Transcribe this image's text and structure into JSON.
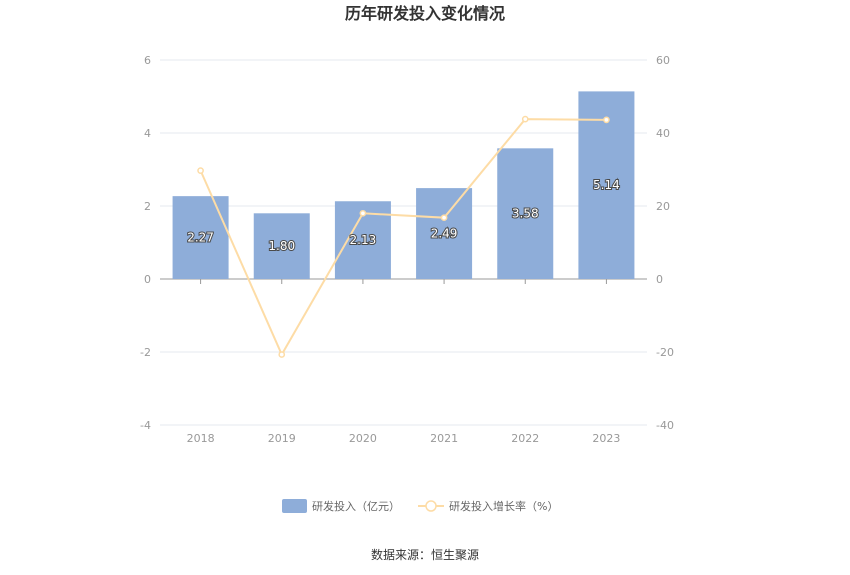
{
  "chart_data": {
    "type": "bar",
    "title": "历年研发投入变化情况",
    "categories": [
      "2018",
      "2019",
      "2020",
      "2021",
      "2022",
      "2023"
    ],
    "series": [
      {
        "name": "研发投入（亿元）",
        "type": "bar",
        "axis": "left",
        "values": [
          2.27,
          1.8,
          2.13,
          2.49,
          3.58,
          5.14
        ],
        "labels": [
          "2.27",
          "1.80",
          "2.13",
          "2.49",
          "3.58",
          "5.14"
        ]
      },
      {
        "name": "研发投入增长率（%）",
        "type": "line",
        "axis": "right",
        "values": [
          29.7,
          -20.7,
          18.0,
          16.8,
          43.8,
          43.6
        ]
      }
    ],
    "y_left": {
      "ylim": [
        -4,
        6
      ],
      "ticks": [
        "-4",
        "-2",
        "0",
        "2",
        "4",
        "6"
      ]
    },
    "y_right": {
      "ylim": [
        -40,
        60
      ],
      "ticks": [
        "-40",
        "-20",
        "0",
        "20",
        "40",
        "60"
      ]
    },
    "grid": true,
    "legend": "bottom-center",
    "colors": {
      "bar": "#8eadd9",
      "line": "#fddca6",
      "grid": "#e6e8ef",
      "axis": "#999999"
    }
  },
  "source": "数据来源：恒生聚源"
}
